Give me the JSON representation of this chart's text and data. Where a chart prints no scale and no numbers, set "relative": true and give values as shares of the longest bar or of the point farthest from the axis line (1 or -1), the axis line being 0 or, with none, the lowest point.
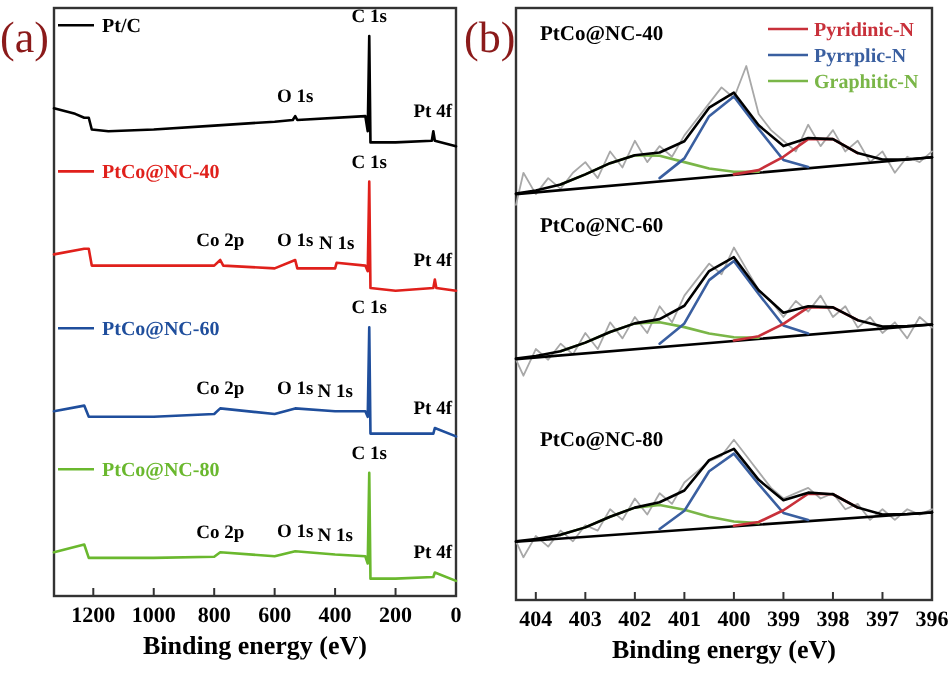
{
  "chart_data": [
    {
      "type": "line",
      "title": "(a)",
      "xlabel": "Binding energy (eV)",
      "relative": true,
      "legend": "left",
      "xlim": [
        1330,
        0
      ],
      "xticks": [
        1200,
        1000,
        800,
        600,
        400,
        200,
        0
      ],
      "series": [
        {
          "name": "Pt/C",
          "color": "#000000",
          "x": [
            1330,
            1260,
            1230,
            1215,
            1205,
            1150,
            1000,
            800,
            600,
            540,
            532,
            525,
            300,
            292,
            287,
            283,
            200,
            80,
            75,
            70,
            0
          ],
          "values": [
            0.871,
            0.861,
            0.854,
            0.854,
            0.833,
            0.83,
            0.833,
            0.84,
            0.847,
            0.85,
            0.857,
            0.85,
            0.857,
            0.83,
            1,
            0.81,
            0.81,
            0.813,
            0.83,
            0.813,
            0.803
          ]
        },
        {
          "name": "PtCo@NC-40",
          "color": "#e0201b",
          "x": [
            1330,
            1230,
            1215,
            1205,
            1150,
            800,
            780,
            770,
            600,
            532,
            525,
            400,
            395,
            300,
            292,
            287,
            283,
            200,
            75,
            70,
            65,
            0
          ],
          "values": [
            0.61,
            0.62,
            0.62,
            0.59,
            0.59,
            0.59,
            0.6,
            0.59,
            0.585,
            0.6,
            0.585,
            0.585,
            0.595,
            0.59,
            0.58,
            0.74,
            0.55,
            0.545,
            0.55,
            0.565,
            0.55,
            0.545
          ]
        },
        {
          "name": "PtCo@NC-60",
          "color": "#1f4e9c",
          "x": [
            1330,
            1230,
            1215,
            1000,
            800,
            780,
            600,
            532,
            400,
            300,
            292,
            287,
            283,
            200,
            75,
            70,
            0
          ],
          "values": [
            0.33,
            0.34,
            0.32,
            0.32,
            0.325,
            0.335,
            0.325,
            0.335,
            0.33,
            0.33,
            0.32,
            0.48,
            0.29,
            0.29,
            0.29,
            0.3,
            0.285
          ]
        },
        {
          "name": "PtCo@NC-80",
          "color": "#6ab82e",
          "x": [
            1330,
            1230,
            1215,
            1000,
            800,
            780,
            600,
            532,
            400,
            300,
            292,
            287,
            283,
            200,
            75,
            70,
            0
          ],
          "values": [
            0.078,
            0.092,
            0.068,
            0.068,
            0.07,
            0.078,
            0.071,
            0.08,
            0.074,
            0.071,
            0.058,
            0.22,
            0.031,
            0.031,
            0.034,
            0.042,
            0.027
          ]
        }
      ],
      "annotations": [
        {
          "text": "O 1s",
          "x": 532,
          "y": 0.857
        },
        {
          "text": "C 1s",
          "x": 287,
          "y": 1
        },
        {
          "text": "Pt 4f",
          "x": 75,
          "y": 0.83
        },
        {
          "text": "Co 2p",
          "x": 780,
          "y": 0.6
        },
        {
          "text": "O 1s",
          "x": 532,
          "y": 0.6
        },
        {
          "text": "N 1s",
          "x": 395,
          "y": 0.595
        },
        {
          "text": "C 1s",
          "x": 287,
          "y": 0.74
        },
        {
          "text": "Pt 4f",
          "x": 70,
          "y": 0.565
        },
        {
          "text": "Co 2p",
          "x": 780,
          "y": 0.335
        },
        {
          "text": "O 1s",
          "x": 532,
          "y": 0.335
        },
        {
          "text": "N 1s",
          "x": 400,
          "y": 0.33
        },
        {
          "text": "C 1s",
          "x": 287,
          "y": 0.48
        },
        {
          "text": "Pt 4f",
          "x": 70,
          "y": 0.3
        },
        {
          "text": "Co 2p",
          "x": 780,
          "y": 0.078
        },
        {
          "text": "O 1s",
          "x": 532,
          "y": 0.08
        },
        {
          "text": "N 1s",
          "x": 400,
          "y": 0.074
        },
        {
          "text": "C 1s",
          "x": 287,
          "y": 0.22
        },
        {
          "text": "Pt 4f",
          "x": 70,
          "y": 0.042
        }
      ]
    },
    {
      "type": "line",
      "title": "(b)",
      "xlabel": "Binding energy (eV)",
      "relative": true,
      "legend": "top right",
      "xlim": [
        404.4,
        396
      ],
      "xticks": [
        404,
        403,
        402,
        401,
        400,
        399,
        398,
        397,
        396
      ],
      "annotations": [
        "PtCo@NC-40",
        "PtCo@NC-60",
        "PtCo@NC-80"
      ],
      "series": [
        {
          "color": "#a8a8a8",
          "x": [
            404.4,
            404.25,
            404,
            403.75,
            403.5,
            403.25,
            403,
            402.75,
            402.5,
            402.25,
            402,
            401.75,
            401.5,
            401.25,
            401,
            400.75,
            400.5,
            400.25,
            400,
            399.75,
            399.5,
            399.25,
            399,
            398.75,
            398.5,
            398.25,
            398,
            397.75,
            397.5,
            397.25,
            397,
            396.75,
            396.5,
            396.25,
            396
          ],
          "values": [
            0.74,
            0.8,
            0.76,
            0.79,
            0.77,
            0.8,
            0.82,
            0.79,
            0.84,
            0.81,
            0.86,
            0.82,
            0.85,
            0.83,
            0.87,
            0.9,
            0.93,
            0.96,
            0.94,
            1,
            0.91,
            0.88,
            0.86,
            0.84,
            0.89,
            0.85,
            0.88,
            0.84,
            0.86,
            0.82,
            0.84,
            0.8,
            0.83,
            0.82,
            0.84
          ]
        },
        {
          "color": "#a8a8a8",
          "x": [
            404.4,
            404.25,
            404,
            403.75,
            403.5,
            403.25,
            403,
            402.75,
            402.5,
            402.25,
            402,
            401.75,
            401.5,
            401.25,
            401,
            400.75,
            400.5,
            400.25,
            400,
            399.75,
            399.5,
            399.25,
            399,
            398.75,
            398.5,
            398.25,
            398,
            397.75,
            397.5,
            397.25,
            397,
            396.75,
            396.5,
            396.25,
            396
          ],
          "values": [
            0.45,
            0.42,
            0.47,
            0.45,
            0.48,
            0.46,
            0.5,
            0.47,
            0.52,
            0.49,
            0.53,
            0.5,
            0.55,
            0.52,
            0.57,
            0.6,
            0.63,
            0.61,
            0.66,
            0.62,
            0.58,
            0.56,
            0.53,
            0.56,
            0.54,
            0.57,
            0.53,
            0.55,
            0.51,
            0.53,
            0.5,
            0.52,
            0.49,
            0.53,
            0.51
          ]
        },
        {
          "color": "#a8a8a8",
          "x": [
            404.4,
            404.25,
            404,
            403.75,
            403.5,
            403.25,
            403,
            402.75,
            402.5,
            402.25,
            402,
            401.75,
            401.5,
            401.25,
            401,
            400.75,
            400.5,
            400.25,
            400,
            399.75,
            399.5,
            399.25,
            399,
            398.75,
            398.5,
            398.25,
            398,
            397.75,
            397.5,
            397.25,
            397,
            396.75,
            396.5,
            396.25,
            396
          ],
          "values": [
            0.11,
            0.08,
            0.12,
            0.1,
            0.13,
            0.11,
            0.14,
            0.13,
            0.17,
            0.15,
            0.19,
            0.16,
            0.2,
            0.18,
            0.22,
            0.24,
            0.26,
            0.27,
            0.3,
            0.27,
            0.24,
            0.21,
            0.19,
            0.2,
            0.21,
            0.19,
            0.2,
            0.17,
            0.18,
            0.15,
            0.17,
            0.15,
            0.17,
            0.16,
            0.17
          ]
        },
        {
          "color": "#000000",
          "x": [
            404.4,
            396
          ],
          "values": [
            0.76,
            0.829
          ]
        },
        {
          "color": "#000000",
          "x": [
            404.4,
            396
          ],
          "values": [
            0.451,
            0.516
          ]
        },
        {
          "color": "#000000",
          "x": [
            404.4,
            396
          ],
          "values": [
            0.109,
            0.164
          ]
        },
        {
          "name": "Graphitic-N",
          "color": "#7ab648",
          "x": [
            403.5,
            403,
            402.5,
            402,
            401.5,
            401,
            400.5,
            400,
            399.5
          ],
          "values": [
            0.778,
            0.797,
            0.818,
            0.833,
            0.832,
            0.82,
            0.808,
            0.802,
            0.802
          ]
        },
        {
          "name": "Pyrrplic-N",
          "color": "#3a5fa0",
          "x": [
            401.5,
            401,
            400.5,
            400,
            399.5,
            399,
            398.5
          ],
          "values": [
            0.79,
            0.827,
            0.906,
            0.943,
            0.882,
            0.824,
            0.811
          ]
        },
        {
          "name": "Pyridinic-N",
          "color": "#c8303a",
          "x": [
            400,
            399.5,
            399,
            398.5,
            398,
            397.5
          ],
          "values": [
            0.797,
            0.805,
            0.83,
            0.863,
            0.863,
            0.837
          ]
        },
        {
          "color": "#7ab648",
          "x": [
            403.5,
            403,
            402.5,
            402,
            401.5,
            401,
            400.5,
            400,
            399.5
          ],
          "values": [
            0.466,
            0.482,
            0.502,
            0.518,
            0.52,
            0.511,
            0.499,
            0.492,
            0.491
          ]
        },
        {
          "color": "#3a5fa0",
          "x": [
            401.5,
            401,
            400.5,
            400,
            399.5,
            399,
            398.5
          ],
          "values": [
            0.48,
            0.518,
            0.599,
            0.635,
            0.573,
            0.514,
            0.499
          ]
        },
        {
          "color": "#c8303a",
          "x": [
            400,
            399.5,
            399,
            398.5,
            398,
            397.5
          ],
          "values": [
            0.486,
            0.494,
            0.517,
            0.548,
            0.548,
            0.524
          ]
        },
        {
          "color": "#7ab648",
          "x": [
            403.5,
            403,
            402.5,
            402,
            401.5,
            401,
            400.5,
            400,
            399.5
          ],
          "values": [
            0.122,
            0.136,
            0.156,
            0.173,
            0.178,
            0.169,
            0.156,
            0.147,
            0.144
          ]
        },
        {
          "color": "#3a5fa0",
          "x": [
            401.5,
            401,
            400.5,
            400,
            399.5,
            399,
            398.5
          ],
          "values": [
            0.133,
            0.167,
            0.241,
            0.274,
            0.217,
            0.163,
            0.15
          ]
        },
        {
          "color": "#c8303a",
          "x": [
            400,
            399.5,
            399,
            398.5,
            398,
            397.5
          ],
          "values": [
            0.139,
            0.146,
            0.168,
            0.199,
            0.198,
            0.173
          ]
        },
        {
          "color": "#000000",
          "x": [
            404.4,
            404,
            403.5,
            403,
            402.5,
            402,
            401.5,
            401,
            400.5,
            400,
            399.5,
            399,
            398.5,
            398,
            397.5,
            397,
            396.5,
            396
          ],
          "values": [
            0.761,
            0.767,
            0.778,
            0.797,
            0.818,
            0.833,
            0.838,
            0.859,
            0.922,
            0.95,
            0.889,
            0.85,
            0.865,
            0.863,
            0.837,
            0.825,
            0.825,
            0.829
          ]
        },
        {
          "color": "#000000",
          "x": [
            404.4,
            404,
            403.5,
            403,
            402.5,
            402,
            401.5,
            401,
            400.5,
            400,
            399.5,
            399,
            398.5,
            398,
            397.5,
            397,
            396.5,
            396
          ],
          "values": [
            0.452,
            0.457,
            0.466,
            0.482,
            0.502,
            0.518,
            0.526,
            0.551,
            0.616,
            0.642,
            0.58,
            0.538,
            0.55,
            0.548,
            0.524,
            0.512,
            0.513,
            0.516
          ]
        },
        {
          "color": "#000000",
          "x": [
            404.4,
            404,
            403.5,
            403,
            402.5,
            402,
            401.5,
            401,
            400.5,
            400,
            399.5,
            399,
            398.5,
            398,
            397.5,
            397,
            396.5,
            396
          ],
          "values": [
            0.11,
            0.114,
            0.122,
            0.136,
            0.156,
            0.173,
            0.183,
            0.205,
            0.262,
            0.283,
            0.225,
            0.187,
            0.201,
            0.198,
            0.173,
            0.16,
            0.161,
            0.164
          ]
        }
      ]
    }
  ]
}
